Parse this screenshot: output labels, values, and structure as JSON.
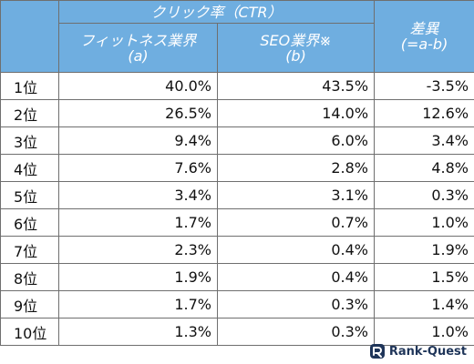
{
  "header": {
    "ctr_group": "クリック率（CTR）",
    "col_a_line1": "フィットネス業界",
    "col_a_line2": "(a)",
    "col_b_line1": "SEO業界※",
    "col_b_line2": "(b)",
    "diff_line1": "差異",
    "diff_line2": "(=a-b)"
  },
  "rows": [
    {
      "rank": "1位",
      "a": "40.0%",
      "b": "43.5%",
      "diff": "-3.5%"
    },
    {
      "rank": "2位",
      "a": "26.5%",
      "b": "14.0%",
      "diff": "12.6%"
    },
    {
      "rank": "3位",
      "a": "9.4%",
      "b": "6.0%",
      "diff": "3.4%"
    },
    {
      "rank": "4位",
      "a": "7.6%",
      "b": "2.8%",
      "diff": "4.8%"
    },
    {
      "rank": "5位",
      "a": "3.4%",
      "b": "3.1%",
      "diff": "0.3%"
    },
    {
      "rank": "6位",
      "a": "1.7%",
      "b": "0.7%",
      "diff": "1.0%"
    },
    {
      "rank": "7位",
      "a": "2.3%",
      "b": "0.4%",
      "diff": "1.9%"
    },
    {
      "rank": "8位",
      "a": "1.9%",
      "b": "0.4%",
      "diff": "1.5%"
    },
    {
      "rank": "9位",
      "a": "1.7%",
      "b": "0.3%",
      "diff": "1.4%"
    },
    {
      "rank": "10位",
      "a": "1.3%",
      "b": "0.3%",
      "diff": "1.0%"
    }
  ],
  "logo": {
    "text": "Rank-Quest",
    "icon": "rank-quest-logo-icon"
  },
  "colors": {
    "header_bg": "#6faee0",
    "header_text": "#ffffff",
    "border": "#6f6f6f",
    "logo_text": "#1f3559"
  }
}
